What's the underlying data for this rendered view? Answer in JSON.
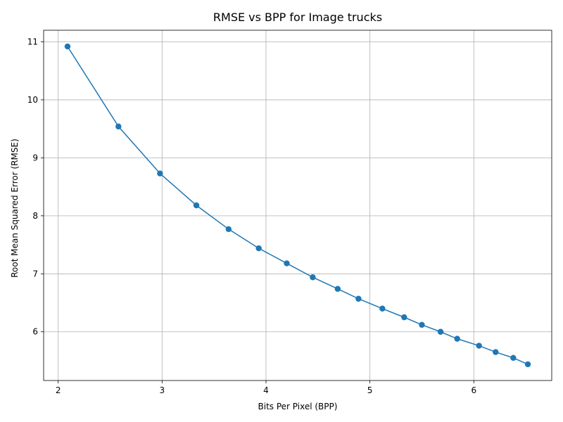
{
  "chart_data": {
    "type": "line",
    "title": "RMSE vs BPP for Image trucks",
    "xlabel": "Bits Per Pixel (BPP)",
    "ylabel": "Root Mean Squared Error (RMSE)",
    "xlim": [
      1.86,
      6.75
    ],
    "ylim": [
      5.16,
      11.2
    ],
    "xticks": [
      2,
      3,
      4,
      5,
      6
    ],
    "yticks": [
      6,
      7,
      8,
      9,
      10,
      11
    ],
    "grid": true,
    "color": "#1f77b4",
    "marker": "circle",
    "series": [
      {
        "x": [
          2.09,
          2.58,
          2.98,
          3.33,
          3.64,
          3.93,
          4.2,
          4.45,
          4.69,
          4.89,
          5.12,
          5.33,
          5.5,
          5.68,
          5.84,
          6.05,
          6.21,
          6.38,
          6.52
        ],
        "y": [
          10.92,
          9.54,
          8.73,
          8.18,
          7.77,
          7.44,
          7.18,
          6.94,
          6.74,
          6.57,
          6.4,
          6.25,
          6.12,
          6.0,
          5.88,
          5.76,
          5.65,
          5.55,
          5.44
        ]
      }
    ]
  }
}
